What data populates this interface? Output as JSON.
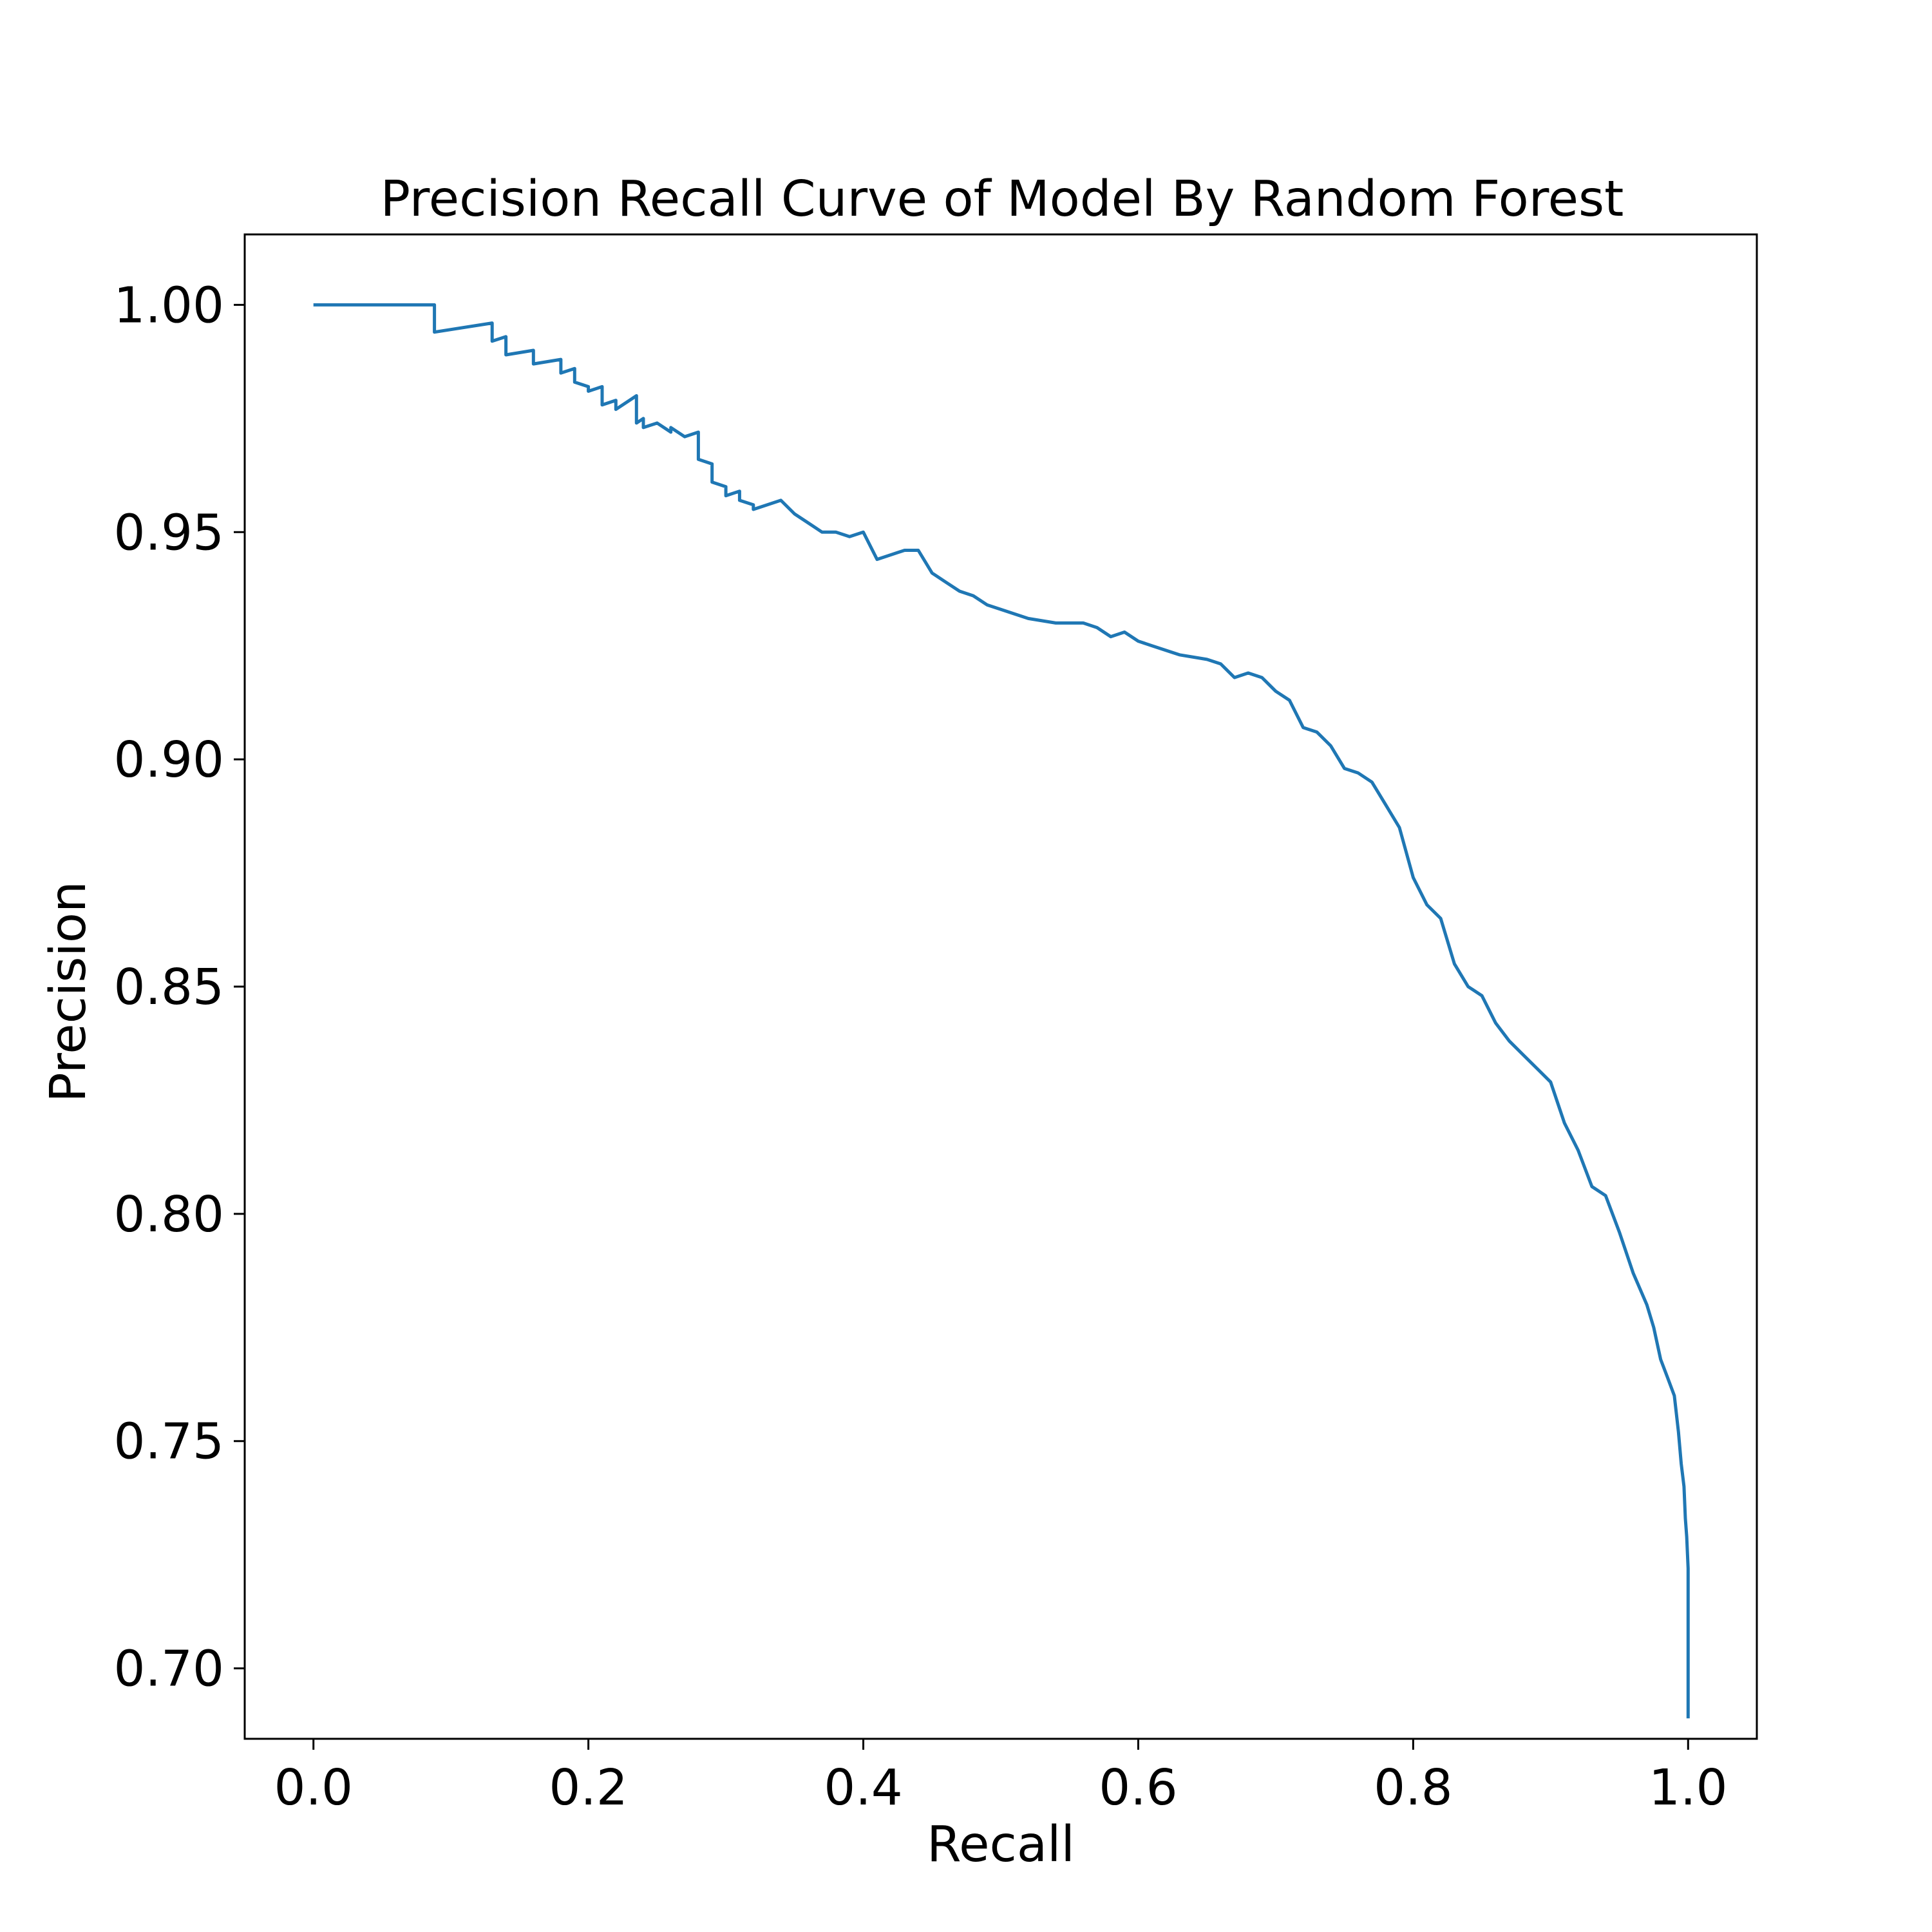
{
  "chart_data": {
    "type": "line",
    "title": "Precision Recall Curve of Model By Random Forest",
    "xlabel": "Recall",
    "ylabel": "Precision",
    "xlim": [
      -0.05,
      1.05
    ],
    "ylim": [
      0.6845,
      1.0155
    ],
    "x_ticks": [
      0.0,
      0.2,
      0.4,
      0.6,
      0.8,
      1.0
    ],
    "x_tick_labels": [
      "0.0",
      "0.2",
      "0.4",
      "0.6",
      "0.8",
      "1.0"
    ],
    "y_ticks": [
      0.7,
      0.75,
      0.8,
      0.85,
      0.9,
      0.95,
      1.0
    ],
    "y_tick_labels": [
      "0.70",
      "0.75",
      "0.80",
      "0.85",
      "0.90",
      "0.95",
      "1.00"
    ],
    "grid": false,
    "line_color": "#1f77b4",
    "series": [
      {
        "x": [
          0.0,
          0.088,
          0.088,
          0.13,
          0.13,
          0.14,
          0.14,
          0.16,
          0.16,
          0.18,
          0.18,
          0.19,
          0.19,
          0.2,
          0.2,
          0.21,
          0.21,
          0.22,
          0.22,
          0.235,
          0.235,
          0.24,
          0.24,
          0.25,
          0.26,
          0.26,
          0.27,
          0.28,
          0.28,
          0.29,
          0.29,
          0.3,
          0.3,
          0.31,
          0.31,
          0.32,
          0.32,
          0.34,
          0.35,
          0.36,
          0.37,
          0.38,
          0.39,
          0.4,
          0.41,
          0.41,
          0.43,
          0.44,
          0.45,
          0.46,
          0.47,
          0.48,
          0.49,
          0.5,
          0.52,
          0.54,
          0.56,
          0.57,
          0.58,
          0.59,
          0.6,
          0.61,
          0.63,
          0.65,
          0.66,
          0.67,
          0.68,
          0.69,
          0.7,
          0.71,
          0.72,
          0.73,
          0.74,
          0.75,
          0.76,
          0.77,
          0.78,
          0.79,
          0.8,
          0.81,
          0.82,
          0.83,
          0.84,
          0.85,
          0.86,
          0.87,
          0.88,
          0.89,
          0.9,
          0.91,
          0.92,
          0.93,
          0.94,
          0.95,
          0.96,
          0.97,
          0.975,
          0.98,
          0.985,
          0.99,
          0.993,
          0.995,
          0.997,
          0.998,
          0.999,
          1.0,
          1.0
        ],
        "y": [
          1.0,
          1.0,
          0.994,
          0.996,
          0.992,
          0.993,
          0.989,
          0.99,
          0.987,
          0.988,
          0.985,
          0.986,
          0.983,
          0.982,
          0.981,
          0.982,
          0.978,
          0.979,
          0.977,
          0.98,
          0.974,
          0.975,
          0.973,
          0.974,
          0.972,
          0.973,
          0.971,
          0.972,
          0.966,
          0.965,
          0.961,
          0.96,
          0.958,
          0.959,
          0.957,
          0.956,
          0.955,
          0.957,
          0.954,
          0.952,
          0.95,
          0.95,
          0.949,
          0.95,
          0.944,
          0.944,
          0.946,
          0.946,
          0.941,
          0.939,
          0.937,
          0.936,
          0.934,
          0.933,
          0.931,
          0.93,
          0.93,
          0.929,
          0.927,
          0.928,
          0.926,
          0.925,
          0.923,
          0.922,
          0.921,
          0.918,
          0.919,
          0.918,
          0.915,
          0.913,
          0.907,
          0.906,
          0.903,
          0.898,
          0.897,
          0.895,
          0.89,
          0.885,
          0.874,
          0.868,
          0.865,
          0.855,
          0.85,
          0.848,
          0.842,
          0.838,
          0.835,
          0.832,
          0.829,
          0.82,
          0.814,
          0.806,
          0.804,
          0.796,
          0.787,
          0.78,
          0.775,
          0.768,
          0.764,
          0.76,
          0.752,
          0.745,
          0.74,
          0.733,
          0.729,
          0.722,
          0.689
        ]
      }
    ]
  }
}
